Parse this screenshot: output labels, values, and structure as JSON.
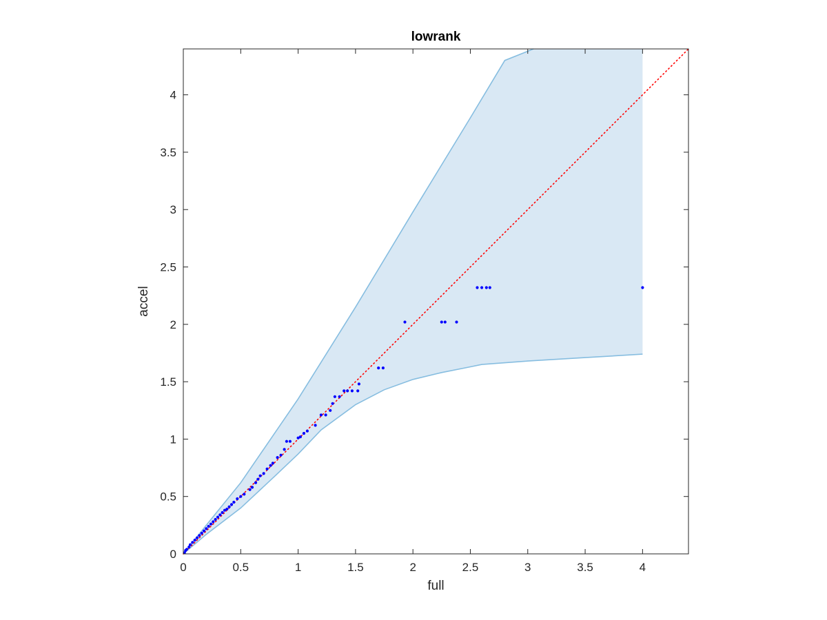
{
  "chart_data": {
    "type": "scatter",
    "title": "lowrank",
    "xlabel": "full",
    "ylabel": "accel",
    "xlim": [
      0,
      4.4
    ],
    "ylim": [
      0,
      4.4
    ],
    "grid": false,
    "xticks": [
      0,
      0.5,
      1,
      1.5,
      2,
      2.5,
      3,
      3.5,
      4
    ],
    "yticks": [
      0,
      0.5,
      1,
      1.5,
      2,
      2.5,
      3,
      3.5,
      4
    ],
    "xtick_labels": [
      "0",
      "0.5",
      "1",
      "1.5",
      "2",
      "2.5",
      "3",
      "3.5",
      "4"
    ],
    "ytick_labels": [
      "0",
      "0.5",
      "1",
      "1.5",
      "2",
      "2.5",
      "3",
      "3.5",
      "4"
    ],
    "reference_line": {
      "style": "dotted",
      "color": "#ff0000",
      "points": [
        [
          0,
          0
        ],
        [
          4.4,
          4.4
        ]
      ]
    },
    "band": {
      "fill_color": "#d9e8f4",
      "edge_color": "#86bde0",
      "upper": [
        [
          0,
          0
        ],
        [
          0.2,
          0.25
        ],
        [
          0.5,
          0.62
        ],
        [
          1.0,
          1.35
        ],
        [
          1.5,
          2.15
        ],
        [
          2.0,
          2.98
        ],
        [
          2.5,
          3.8
        ],
        [
          2.8,
          4.3
        ],
        [
          3.05,
          4.4
        ],
        [
          4.0,
          4.4
        ]
      ],
      "lower": [
        [
          0,
          0
        ],
        [
          0.2,
          0.17
        ],
        [
          0.5,
          0.4
        ],
        [
          0.8,
          0.68
        ],
        [
          1.0,
          0.87
        ],
        [
          1.2,
          1.08
        ],
        [
          1.5,
          1.3
        ],
        [
          1.75,
          1.43
        ],
        [
          2.0,
          1.52
        ],
        [
          2.25,
          1.58
        ],
        [
          2.5,
          1.63
        ],
        [
          2.6,
          1.65
        ],
        [
          3.0,
          1.68
        ],
        [
          3.5,
          1.71
        ],
        [
          4.0,
          1.74
        ]
      ]
    },
    "series": [
      {
        "color": "#0000ff",
        "marker": "point",
        "points": [
          [
            0.01,
            0.01
          ],
          [
            0.02,
            0.03
          ],
          [
            0.03,
            0.04
          ],
          [
            0.05,
            0.06
          ],
          [
            0.06,
            0.08
          ],
          [
            0.08,
            0.1
          ],
          [
            0.1,
            0.12
          ],
          [
            0.12,
            0.14
          ],
          [
            0.14,
            0.16
          ],
          [
            0.16,
            0.18
          ],
          [
            0.18,
            0.2
          ],
          [
            0.2,
            0.22
          ],
          [
            0.22,
            0.24
          ],
          [
            0.24,
            0.26
          ],
          [
            0.26,
            0.28
          ],
          [
            0.28,
            0.3
          ],
          [
            0.3,
            0.32
          ],
          [
            0.32,
            0.34
          ],
          [
            0.34,
            0.36
          ],
          [
            0.36,
            0.38
          ],
          [
            0.38,
            0.39
          ],
          [
            0.4,
            0.41
          ],
          [
            0.42,
            0.43
          ],
          [
            0.44,
            0.45
          ],
          [
            0.47,
            0.48
          ],
          [
            0.5,
            0.5
          ],
          [
            0.53,
            0.52
          ],
          [
            0.58,
            0.56
          ],
          [
            0.6,
            0.58
          ],
          [
            0.63,
            0.62
          ],
          [
            0.65,
            0.65
          ],
          [
            0.67,
            0.68
          ],
          [
            0.7,
            0.7
          ],
          [
            0.73,
            0.74
          ],
          [
            0.76,
            0.77
          ],
          [
            0.78,
            0.79
          ],
          [
            0.82,
            0.84
          ],
          [
            0.85,
            0.86
          ],
          [
            0.88,
            0.91
          ],
          [
            0.9,
            0.98
          ],
          [
            0.93,
            0.98
          ],
          [
            1.0,
            1.01
          ],
          [
            1.02,
            1.02
          ],
          [
            1.05,
            1.05
          ],
          [
            1.08,
            1.07
          ],
          [
            1.15,
            1.12
          ],
          [
            1.2,
            1.21
          ],
          [
            1.24,
            1.21
          ],
          [
            1.28,
            1.25
          ],
          [
            1.3,
            1.31
          ],
          [
            1.32,
            1.37
          ],
          [
            1.36,
            1.37
          ],
          [
            1.4,
            1.42
          ],
          [
            1.43,
            1.42
          ],
          [
            1.47,
            1.42
          ],
          [
            1.52,
            1.42
          ],
          [
            1.53,
            1.48
          ],
          [
            1.7,
            1.62
          ],
          [
            1.74,
            1.62
          ],
          [
            1.93,
            2.02
          ],
          [
            2.25,
            2.02
          ],
          [
            2.28,
            2.02
          ],
          [
            2.38,
            2.02
          ],
          [
            2.56,
            2.32
          ],
          [
            2.6,
            2.32
          ],
          [
            2.64,
            2.32
          ],
          [
            2.67,
            2.32
          ],
          [
            4.0,
            2.32
          ]
        ]
      }
    ]
  }
}
